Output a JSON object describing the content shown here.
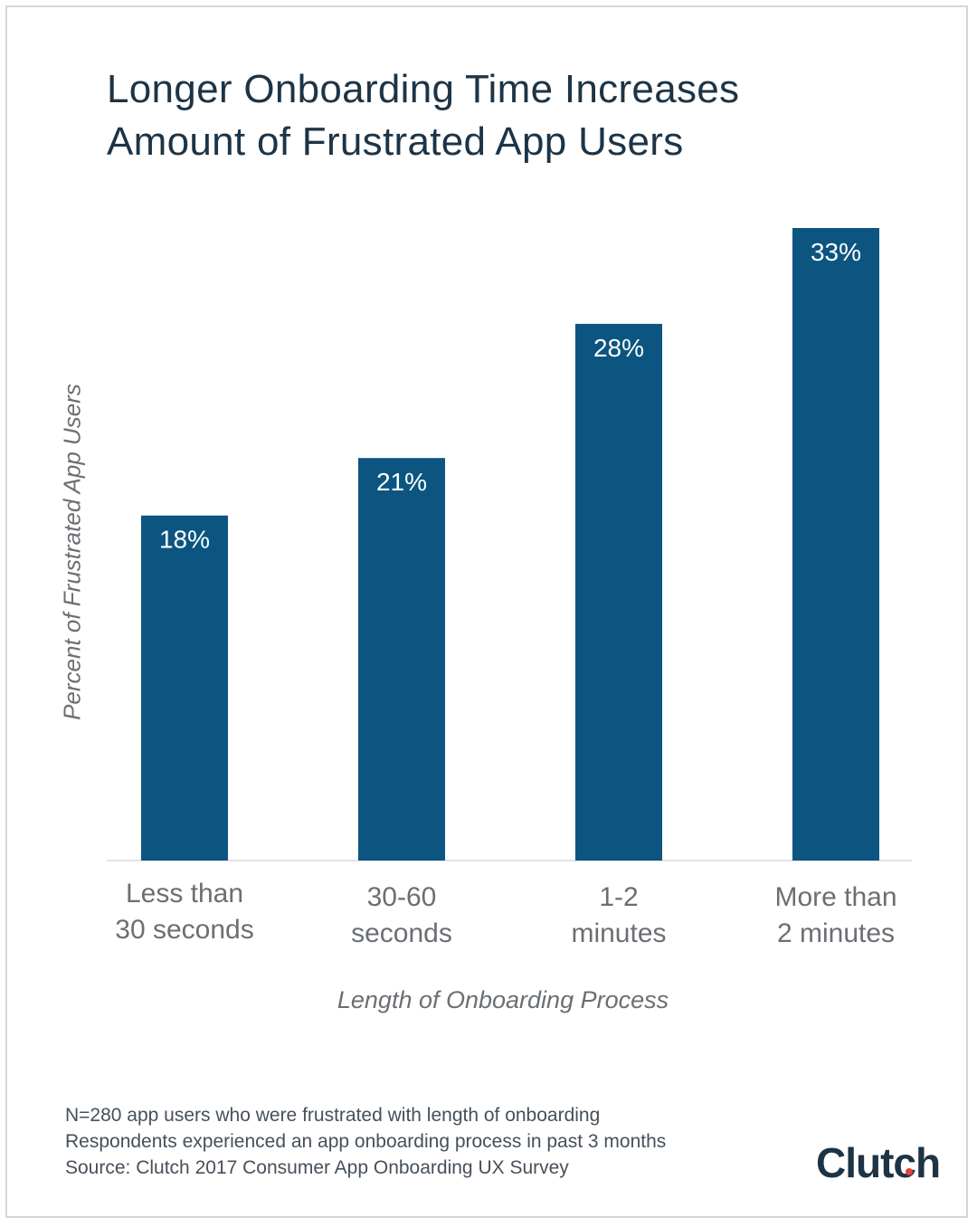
{
  "title_lines": [
    "Longer Onboarding Time Increases",
    "Amount of Frustrated App Users"
  ],
  "colors": {
    "bar": "#0b5580",
    "bar_label": "#ffffff",
    "title": "#1d3446",
    "axis_text": "#6b6f73",
    "baseline": "#e2e2e2",
    "logo_dot": "#e0423b"
  },
  "chart_data": {
    "type": "bar",
    "title": "Longer Onboarding Time Increases Amount of Frustrated App Users",
    "categories": [
      [
        "Less than",
        "30 seconds"
      ],
      [
        "30-60",
        "seconds"
      ],
      [
        "1-2",
        "minutes"
      ],
      [
        "More than",
        "2 minutes"
      ]
    ],
    "values": [
      18,
      21,
      28,
      33
    ],
    "value_labels": [
      "18%",
      "21%",
      "28%",
      "33%"
    ],
    "xlabel": "Length of Onboarding Process",
    "ylabel": "Percent of Frustrated App Users",
    "ylim": [
      0,
      33
    ],
    "grid": false,
    "legend": "none"
  },
  "notes": [
    "N=280 app users who were frustrated with length of onboarding",
    "Respondents experienced an app onboarding process in past 3 months",
    "Source: Clutch 2017 Consumer App Onboarding UX Survey"
  ],
  "logo": {
    "text": "Clutch",
    "icon": "red-dot-icon"
  }
}
